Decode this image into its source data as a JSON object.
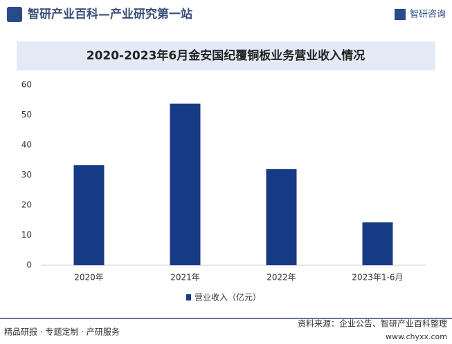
{
  "header": {
    "site_title": "智研产业百科—产业研究第一站",
    "logo": "智研咨询"
  },
  "chart_data": {
    "type": "bar",
    "title": "2020-2023年6月金安国纪覆铜板业务营业收入情况",
    "categories": [
      "2020年",
      "2021年",
      "2022年",
      "2023年1-6月"
    ],
    "series": [
      {
        "name": "营业收入（亿元）",
        "color": "#173a85",
        "values": [
          33.3,
          53.8,
          32.0,
          14.3
        ]
      }
    ],
    "ylim": [
      0,
      60
    ],
    "yticks": [
      0,
      10,
      20,
      30,
      40,
      50,
      60
    ],
    "grid": false,
    "legend": "bottom"
  },
  "footer": {
    "services": "精品研报 · 专题定制 · 产研服务",
    "source": "资料来源：企业公告、智研产业百科整理",
    "url": "www.chyxx.com"
  }
}
